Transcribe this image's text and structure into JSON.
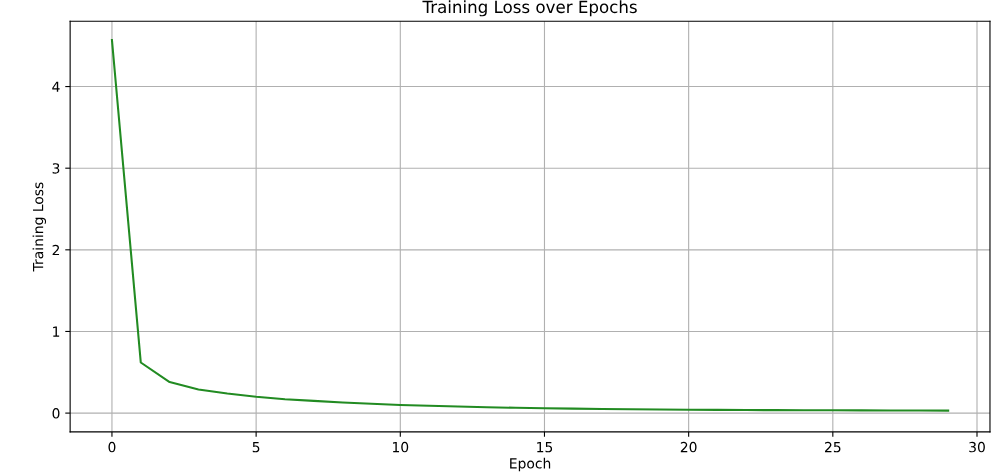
{
  "chart_data": {
    "type": "line",
    "title": "Training Loss over Epochs",
    "xlabel": "Epoch",
    "ylabel": "Training Loss",
    "x": [
      0,
      1,
      2,
      3,
      4,
      5,
      6,
      7,
      8,
      9,
      10,
      11,
      12,
      13,
      14,
      15,
      16,
      17,
      18,
      19,
      20,
      21,
      22,
      23,
      24,
      25,
      26,
      27,
      28,
      29
    ],
    "series": [
      {
        "color": "#228b22",
        "values": [
          4.57,
          0.62,
          0.38,
          0.29,
          0.24,
          0.2,
          0.17,
          0.15,
          0.13,
          0.115,
          0.1,
          0.09,
          0.08,
          0.072,
          0.065,
          0.06,
          0.055,
          0.05,
          0.047,
          0.044,
          0.042,
          0.04,
          0.038,
          0.036,
          0.035,
          0.034,
          0.033,
          0.032,
          0.031,
          0.03
        ]
      }
    ],
    "xlim": [
      -1.45,
      30.45
    ],
    "ylim": [
      -0.23,
      4.8
    ],
    "xticks": [
      0,
      5,
      10,
      15,
      20,
      25,
      30
    ],
    "yticks": [
      0,
      1,
      2,
      3,
      4
    ],
    "grid": true,
    "line_style": "solid",
    "marker": "none"
  }
}
